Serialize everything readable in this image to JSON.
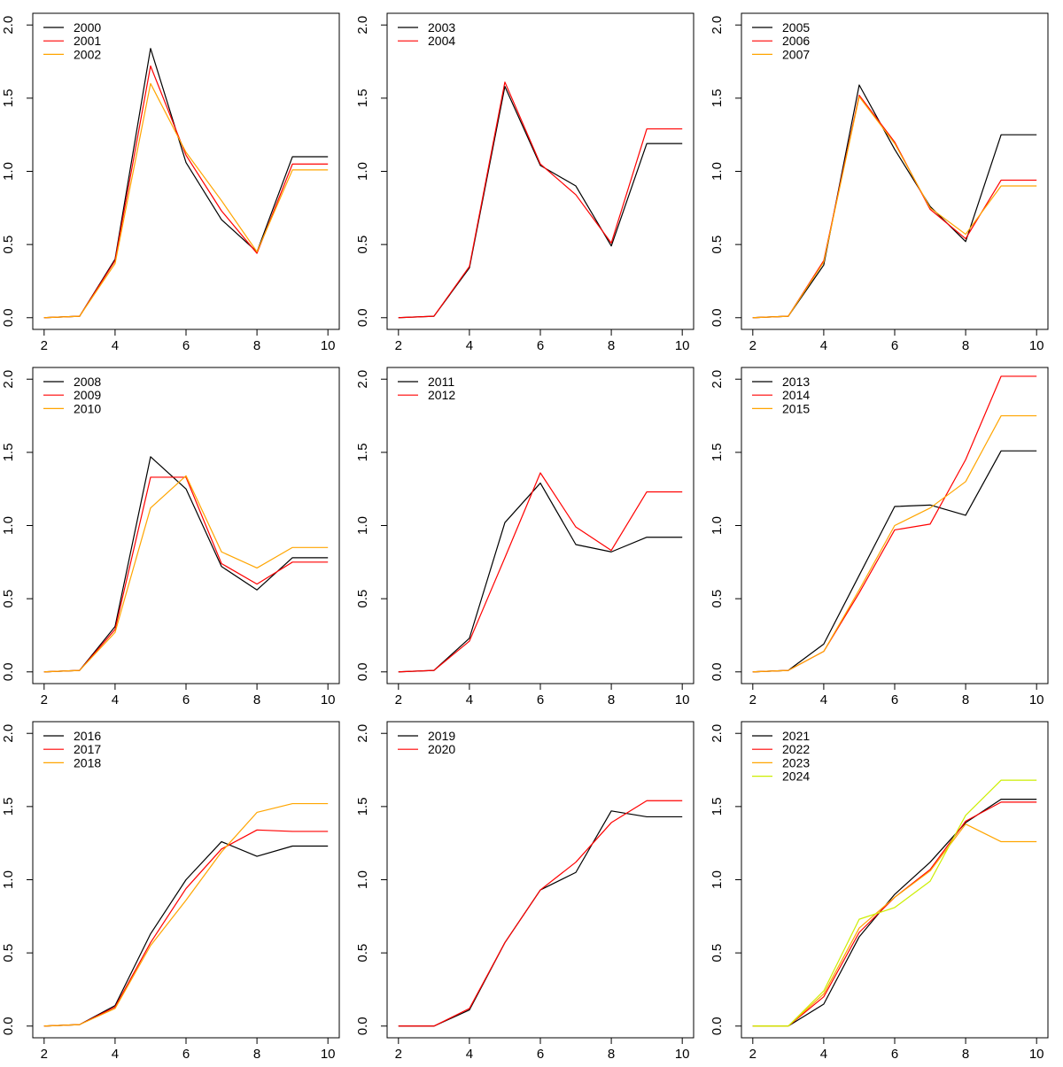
{
  "figure": {
    "background": "#FFFFFF",
    "description": "3x3 grid of R-style line charts, one panel per year group 2000-2024"
  },
  "axes": {
    "x": [
      2,
      3,
      4,
      5,
      6,
      7,
      8,
      9,
      10
    ],
    "xticks": [
      2,
      4,
      6,
      8,
      10
    ],
    "xtick_labels": [
      "2",
      "4",
      "6",
      "8",
      "10"
    ],
    "yticks": [
      0.0,
      0.5,
      1.0,
      1.5,
      2.0
    ],
    "ytick_labels": [
      "0.0",
      "0.5",
      "1.0",
      "1.5",
      "2.0"
    ],
    "xlim": [
      2,
      10
    ],
    "ylim": [
      0,
      2
    ],
    "grid": false,
    "legend_position": "topleft"
  },
  "palette": {
    "black": "#000000",
    "red": "#FF0000",
    "orange": "#FFA500",
    "greenyellow": "#CCEE00"
  },
  "chart_data": [
    {
      "type": "line",
      "x": [
        2,
        3,
        4,
        5,
        6,
        7,
        8,
        9,
        10
      ],
      "series": [
        {
          "name": "2000",
          "color": "#000000",
          "values": [
            0.0,
            0.01,
            0.4,
            1.84,
            1.06,
            0.67,
            0.45,
            1.1,
            1.1
          ]
        },
        {
          "name": "2001",
          "color": "#FF0000",
          "values": [
            0.0,
            0.01,
            0.39,
            1.72,
            1.11,
            0.73,
            0.44,
            1.05,
            1.05
          ]
        },
        {
          "name": "2002",
          "color": "#FFA500",
          "values": [
            0.0,
            0.01,
            0.37,
            1.6,
            1.13,
            0.8,
            0.45,
            1.01,
            1.01
          ]
        }
      ]
    },
    {
      "type": "line",
      "x": [
        2,
        3,
        4,
        5,
        6,
        7,
        8,
        9,
        10
      ],
      "series": [
        {
          "name": "2003",
          "color": "#000000",
          "values": [
            0.0,
            0.01,
            0.34,
            1.58,
            1.04,
            0.9,
            0.49,
            1.19,
            1.19
          ]
        },
        {
          "name": "2004",
          "color": "#FF0000",
          "values": [
            0.0,
            0.01,
            0.35,
            1.61,
            1.05,
            0.84,
            0.51,
            1.29,
            1.29
          ]
        }
      ]
    },
    {
      "type": "line",
      "x": [
        2,
        3,
        4,
        5,
        6,
        7,
        8,
        9,
        10
      ],
      "series": [
        {
          "name": "2005",
          "color": "#000000",
          "values": [
            0.0,
            0.01,
            0.36,
            1.59,
            1.15,
            0.76,
            0.52,
            1.25,
            1.25
          ]
        },
        {
          "name": "2006",
          "color": "#FF0000",
          "values": [
            0.0,
            0.01,
            0.39,
            1.52,
            1.2,
            0.74,
            0.54,
            0.94,
            0.94
          ]
        },
        {
          "name": "2007",
          "color": "#FFA500",
          "values": [
            0.0,
            0.01,
            0.38,
            1.51,
            1.19,
            0.75,
            0.57,
            0.9,
            0.9
          ]
        }
      ]
    },
    {
      "type": "line",
      "x": [
        2,
        3,
        4,
        5,
        6,
        7,
        8,
        9,
        10
      ],
      "series": [
        {
          "name": "2008",
          "color": "#000000",
          "values": [
            0.0,
            0.01,
            0.31,
            1.47,
            1.25,
            0.72,
            0.56,
            0.78,
            0.78
          ]
        },
        {
          "name": "2009",
          "color": "#FF0000",
          "values": [
            0.0,
            0.01,
            0.29,
            1.33,
            1.33,
            0.74,
            0.6,
            0.75,
            0.75
          ]
        },
        {
          "name": "2010",
          "color": "#FFA500",
          "values": [
            0.0,
            0.01,
            0.27,
            1.12,
            1.34,
            0.82,
            0.71,
            0.85,
            0.85
          ]
        }
      ]
    },
    {
      "type": "line",
      "x": [
        2,
        3,
        4,
        5,
        6,
        7,
        8,
        9,
        10
      ],
      "series": [
        {
          "name": "2011",
          "color": "#000000",
          "values": [
            0.0,
            0.01,
            0.23,
            1.02,
            1.29,
            0.87,
            0.82,
            0.92,
            0.92
          ]
        },
        {
          "name": "2012",
          "color": "#FF0000",
          "values": [
            0.0,
            0.01,
            0.21,
            0.78,
            1.36,
            0.99,
            0.83,
            1.23,
            1.23
          ]
        }
      ]
    },
    {
      "type": "line",
      "x": [
        2,
        3,
        4,
        5,
        6,
        7,
        8,
        9,
        10
      ],
      "series": [
        {
          "name": "2013",
          "color": "#000000",
          "values": [
            0.0,
            0.01,
            0.19,
            0.66,
            1.13,
            1.14,
            1.07,
            1.51,
            1.51
          ]
        },
        {
          "name": "2014",
          "color": "#FF0000",
          "values": [
            0.0,
            0.01,
            0.14,
            0.54,
            0.97,
            1.01,
            1.45,
            2.02,
            2.02
          ]
        },
        {
          "name": "2015",
          "color": "#FFA500",
          "values": [
            0.0,
            0.01,
            0.14,
            0.56,
            1.0,
            1.12,
            1.3,
            1.75,
            1.75
          ]
        }
      ]
    },
    {
      "type": "line",
      "x": [
        2,
        3,
        4,
        5,
        6,
        7,
        8,
        9,
        10
      ],
      "series": [
        {
          "name": "2016",
          "color": "#000000",
          "values": [
            0.0,
            0.01,
            0.14,
            0.63,
            1.0,
            1.26,
            1.16,
            1.23,
            1.23
          ]
        },
        {
          "name": "2017",
          "color": "#FF0000",
          "values": [
            0.0,
            0.01,
            0.13,
            0.57,
            0.94,
            1.21,
            1.34,
            1.33,
            1.33
          ]
        },
        {
          "name": "2018",
          "color": "#FFA500",
          "values": [
            0.0,
            0.01,
            0.12,
            0.55,
            0.86,
            1.19,
            1.46,
            1.52,
            1.52
          ]
        }
      ]
    },
    {
      "type": "line",
      "x": [
        2,
        3,
        4,
        5,
        6,
        7,
        8,
        9,
        10
      ],
      "series": [
        {
          "name": "2019",
          "color": "#000000",
          "values": [
            0.0,
            0.0,
            0.11,
            0.57,
            0.93,
            1.05,
            1.47,
            1.43,
            1.43
          ]
        },
        {
          "name": "2020",
          "color": "#FF0000",
          "values": [
            0.0,
            0.0,
            0.12,
            0.57,
            0.93,
            1.12,
            1.39,
            1.54,
            1.54
          ]
        }
      ]
    },
    {
      "type": "line",
      "x": [
        2,
        3,
        4,
        5,
        6,
        7,
        8,
        9,
        10
      ],
      "series": [
        {
          "name": "2021",
          "color": "#000000",
          "values": [
            0.0,
            0.0,
            0.15,
            0.61,
            0.9,
            1.12,
            1.39,
            1.55,
            1.55
          ]
        },
        {
          "name": "2022",
          "color": "#FF0000",
          "values": [
            0.0,
            0.0,
            0.2,
            0.64,
            0.88,
            1.07,
            1.4,
            1.53,
            1.53
          ]
        },
        {
          "name": "2023",
          "color": "#FFA500",
          "values": [
            0.0,
            0.0,
            0.22,
            0.67,
            0.88,
            1.06,
            1.38,
            1.26,
            1.26
          ]
        },
        {
          "name": "2024",
          "color": "#CCEE00",
          "values": [
            0.0,
            0.0,
            0.24,
            0.73,
            0.81,
            0.99,
            1.44,
            1.68,
            1.68
          ]
        }
      ]
    }
  ]
}
